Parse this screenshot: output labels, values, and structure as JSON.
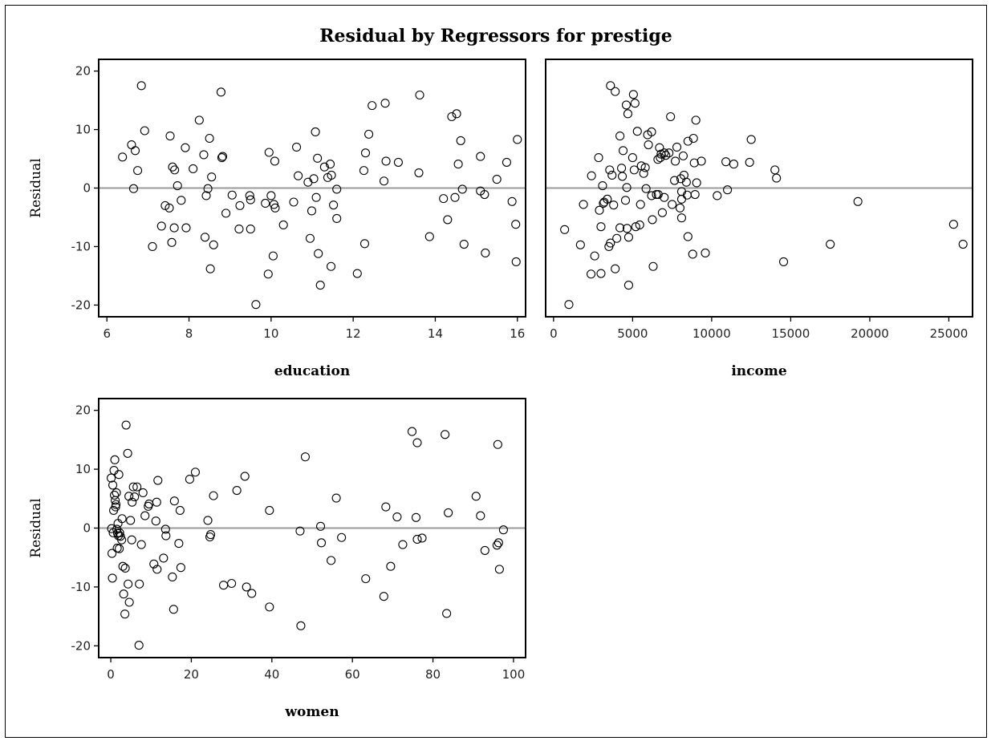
{
  "chart_data": {
    "type": "scatter",
    "title": "Residual by Regressors for prestige",
    "panels": [
      {
        "id": "education",
        "xlabel": "education",
        "ylabel": "Residual",
        "xlim": [
          5.8,
          16.2
        ],
        "ylim": [
          -22,
          22
        ],
        "xticks": [
          6,
          8,
          10,
          12,
          14,
          16
        ],
        "yticks": [
          20,
          10,
          0,
          -10,
          -20
        ],
        "reference_line": 0,
        "points": [
          [
            6.38,
            5.3
          ],
          [
            6.6,
            7.4
          ],
          [
            6.65,
            -0.1
          ],
          [
            6.69,
            6.4
          ],
          [
            6.75,
            3.0
          ],
          [
            6.84,
            17.5
          ],
          [
            6.92,
            9.8
          ],
          [
            7.11,
            -10.0
          ],
          [
            7.33,
            -6.5
          ],
          [
            7.42,
            -3.0
          ],
          [
            7.52,
            -3.4
          ],
          [
            7.54,
            8.9
          ],
          [
            7.58,
            -9.3
          ],
          [
            7.6,
            3.6
          ],
          [
            7.64,
            -6.8
          ],
          [
            7.65,
            3.1
          ],
          [
            7.72,
            0.4
          ],
          [
            7.81,
            -2.1
          ],
          [
            7.91,
            6.9
          ],
          [
            7.93,
            -6.8
          ],
          [
            8.1,
            3.3
          ],
          [
            8.25,
            11.6
          ],
          [
            8.36,
            5.7
          ],
          [
            8.39,
            -8.4
          ],
          [
            8.42,
            -1.3
          ],
          [
            8.46,
            -0.1
          ],
          [
            8.5,
            8.5
          ],
          [
            8.52,
            -13.8
          ],
          [
            8.55,
            1.9
          ],
          [
            8.6,
            -9.7
          ],
          [
            8.78,
            16.4
          ],
          [
            8.8,
            5.2
          ],
          [
            8.82,
            5.4
          ],
          [
            8.9,
            -4.3
          ],
          [
            9.05,
            -1.2
          ],
          [
            9.22,
            -7.0
          ],
          [
            9.24,
            -3.0
          ],
          [
            9.48,
            -1.3
          ],
          [
            9.5,
            -2.0
          ],
          [
            9.5,
            -7.0
          ],
          [
            9.63,
            -19.9
          ],
          [
            9.86,
            -2.6
          ],
          [
            9.93,
            -14.7
          ],
          [
            9.95,
            6.1
          ],
          [
            10.0,
            -1.3
          ],
          [
            10.05,
            -11.6
          ],
          [
            10.07,
            -2.8
          ],
          [
            10.09,
            4.6
          ],
          [
            10.1,
            -3.4
          ],
          [
            10.3,
            -6.3
          ],
          [
            10.55,
            -2.4
          ],
          [
            10.62,
            7.0
          ],
          [
            10.66,
            2.1
          ],
          [
            10.9,
            1.0
          ],
          [
            10.95,
            -8.6
          ],
          [
            10.99,
            -3.9
          ],
          [
            11.04,
            1.6
          ],
          [
            11.08,
            9.6
          ],
          [
            11.1,
            -1.6
          ],
          [
            11.13,
            5.1
          ],
          [
            11.15,
            -11.2
          ],
          [
            11.2,
            -16.6
          ],
          [
            11.3,
            3.6
          ],
          [
            11.38,
            1.8
          ],
          [
            11.44,
            4.1
          ],
          [
            11.46,
            -13.4
          ],
          [
            11.47,
            2.2
          ],
          [
            11.52,
            -2.9
          ],
          [
            11.6,
            -5.2
          ],
          [
            11.6,
            -0.2
          ],
          [
            12.1,
            -14.6
          ],
          [
            12.26,
            3.0
          ],
          [
            12.28,
            -9.5
          ],
          [
            12.3,
            6.0
          ],
          [
            12.38,
            9.2
          ],
          [
            12.46,
            14.1
          ],
          [
            12.75,
            1.2
          ],
          [
            12.78,
            14.5
          ],
          [
            12.8,
            4.6
          ],
          [
            13.1,
            4.4
          ],
          [
            13.6,
            2.6
          ],
          [
            13.62,
            15.9
          ],
          [
            13.86,
            -8.3
          ],
          [
            14.2,
            -1.8
          ],
          [
            14.3,
            -5.4
          ],
          [
            14.4,
            12.2
          ],
          [
            14.48,
            -1.6
          ],
          [
            14.52,
            12.7
          ],
          [
            14.56,
            4.1
          ],
          [
            14.62,
            8.1
          ],
          [
            14.66,
            -0.2
          ],
          [
            14.7,
            -9.6
          ],
          [
            15.1,
            5.4
          ],
          [
            15.1,
            -0.5
          ],
          [
            15.2,
            -1.1
          ],
          [
            15.22,
            -11.1
          ],
          [
            15.5,
            1.5
          ],
          [
            15.74,
            4.4
          ],
          [
            15.87,
            -2.3
          ],
          [
            15.96,
            -6.2
          ],
          [
            15.97,
            -12.6
          ],
          [
            16.0,
            8.3
          ]
        ]
      },
      {
        "id": "income",
        "xlabel": "income",
        "ylabel": "",
        "xlim": [
          -500,
          26500
        ],
        "ylim": [
          -22,
          22
        ],
        "xticks": [
          0,
          5000,
          10000,
          15000,
          20000,
          25000
        ],
        "yticks": [],
        "reference_line": 0,
        "points": [
          [
            700,
            -7.1
          ],
          [
            970,
            -19.9
          ],
          [
            1700,
            -9.7
          ],
          [
            1890,
            -2.8
          ],
          [
            2370,
            -14.7
          ],
          [
            2400,
            2.1
          ],
          [
            2600,
            -11.6
          ],
          [
            2850,
            5.2
          ],
          [
            2900,
            -3.8
          ],
          [
            3000,
            -14.6
          ],
          [
            3000,
            -6.6
          ],
          [
            3100,
            0.4
          ],
          [
            3150,
            -2.6
          ],
          [
            3200,
            -2.4
          ],
          [
            3400,
            -1.9
          ],
          [
            3500,
            -10.0
          ],
          [
            3550,
            3.1
          ],
          [
            3600,
            -9.4
          ],
          [
            3600,
            17.5
          ],
          [
            3700,
            2.2
          ],
          [
            3800,
            -2.9
          ],
          [
            3900,
            16.5
          ],
          [
            3900,
            -13.8
          ],
          [
            4000,
            -8.6
          ],
          [
            4200,
            -6.8
          ],
          [
            4200,
            8.9
          ],
          [
            4300,
            3.4
          ],
          [
            4350,
            2.0
          ],
          [
            4400,
            6.4
          ],
          [
            4550,
            -2.1
          ],
          [
            4600,
            14.2
          ],
          [
            4630,
            0.1
          ],
          [
            4650,
            -6.9
          ],
          [
            4700,
            12.7
          ],
          [
            4750,
            -16.6
          ],
          [
            4750,
            -8.4
          ],
          [
            5000,
            5.2
          ],
          [
            5050,
            16.0
          ],
          [
            5100,
            3.1
          ],
          [
            5150,
            14.5
          ],
          [
            5200,
            -6.6
          ],
          [
            5300,
            9.7
          ],
          [
            5450,
            -6.3
          ],
          [
            5500,
            -2.8
          ],
          [
            5550,
            3.8
          ],
          [
            5700,
            2.5
          ],
          [
            5800,
            3.5
          ],
          [
            5850,
            -0.1
          ],
          [
            5950,
            9.1
          ],
          [
            6000,
            7.4
          ],
          [
            6200,
            9.6
          ],
          [
            6200,
            -1.3
          ],
          [
            6250,
            -5.4
          ],
          [
            6300,
            -13.4
          ],
          [
            6500,
            -1.1
          ],
          [
            6600,
            4.9
          ],
          [
            6620,
            -1.1
          ],
          [
            6700,
            6.9
          ],
          [
            6750,
            5.2
          ],
          [
            6800,
            5.8
          ],
          [
            6880,
            -4.2
          ],
          [
            7000,
            6.0
          ],
          [
            7000,
            -1.6
          ],
          [
            7100,
            5.6
          ],
          [
            7300,
            6.0
          ],
          [
            7400,
            12.2
          ],
          [
            7500,
            -2.8
          ],
          [
            7650,
            1.3
          ],
          [
            7700,
            4.6
          ],
          [
            7800,
            7.0
          ],
          [
            8000,
            -3.4
          ],
          [
            8050,
            1.6
          ],
          [
            8100,
            -0.6
          ],
          [
            8100,
            -5.1
          ],
          [
            8100,
            -1.9
          ],
          [
            8200,
            5.5
          ],
          [
            8250,
            2.2
          ],
          [
            8400,
            1.0
          ],
          [
            8450,
            -1.2
          ],
          [
            8500,
            -8.3
          ],
          [
            8500,
            8.0
          ],
          [
            8800,
            -11.3
          ],
          [
            8850,
            8.5
          ],
          [
            8900,
            4.3
          ],
          [
            8950,
            -1.1
          ],
          [
            9000,
            11.6
          ],
          [
            9050,
            0.9
          ],
          [
            9350,
            4.6
          ],
          [
            9600,
            -11.1
          ],
          [
            10350,
            -1.3
          ],
          [
            10900,
            4.5
          ],
          [
            11000,
            -0.3
          ],
          [
            11400,
            4.1
          ],
          [
            12400,
            4.4
          ],
          [
            12500,
            8.3
          ],
          [
            14000,
            3.1
          ],
          [
            14100,
            1.7
          ],
          [
            14550,
            -12.6
          ],
          [
            17500,
            -9.6
          ],
          [
            19250,
            -2.3
          ],
          [
            25300,
            -6.2
          ],
          [
            25900,
            -9.6
          ]
        ]
      },
      {
        "id": "women",
        "xlabel": "women",
        "ylabel": "Residual",
        "xlim": [
          -3,
          103
        ],
        "ylim": [
          -22,
          22
        ],
        "xticks": [
          0,
          20,
          40,
          60,
          80,
          100
        ],
        "yticks": [
          20,
          10,
          0,
          -10,
          -20
        ],
        "reference_line": 0,
        "points": [
          [
            0.1,
            8.5
          ],
          [
            0.2,
            -0.1
          ],
          [
            0.3,
            -4.3
          ],
          [
            0.4,
            -8.5
          ],
          [
            0.5,
            7.3
          ],
          [
            0.6,
            -0.8
          ],
          [
            0.7,
            3.0
          ],
          [
            0.8,
            9.8
          ],
          [
            0.9,
            5.6
          ],
          [
            1.0,
            11.6
          ],
          [
            1.1,
            4.7
          ],
          [
            1.2,
            3.6
          ],
          [
            1.3,
            4.0
          ],
          [
            1.4,
            6.0
          ],
          [
            1.5,
            -0.2
          ],
          [
            1.6,
            -3.4
          ],
          [
            1.7,
            -0.9
          ],
          [
            1.8,
            0.8
          ],
          [
            1.9,
            -1.3
          ],
          [
            2.0,
            9.1
          ],
          [
            2.1,
            -3.5
          ],
          [
            2.2,
            -0.8
          ],
          [
            2.4,
            -1.4
          ],
          [
            2.7,
            -2.0
          ],
          [
            2.8,
            1.6
          ],
          [
            3.0,
            -6.5
          ],
          [
            3.2,
            -11.2
          ],
          [
            3.5,
            -14.6
          ],
          [
            3.6,
            -6.8
          ],
          [
            3.8,
            17.5
          ],
          [
            4.2,
            12.7
          ],
          [
            4.3,
            -9.5
          ],
          [
            4.5,
            5.4
          ],
          [
            4.6,
            -12.6
          ],
          [
            4.9,
            1.3
          ],
          [
            5.2,
            -2.0
          ],
          [
            5.3,
            4.4
          ],
          [
            5.6,
            7.0
          ],
          [
            5.9,
            5.3
          ],
          [
            6.5,
            7.0
          ],
          [
            7.0,
            -19.9
          ],
          [
            7.1,
            -9.5
          ],
          [
            7.6,
            -2.8
          ],
          [
            8.0,
            6.0
          ],
          [
            8.5,
            2.1
          ],
          [
            9.3,
            3.7
          ],
          [
            9.5,
            4.1
          ],
          [
            10.7,
            -6.1
          ],
          [
            11.2,
            1.2
          ],
          [
            11.4,
            4.4
          ],
          [
            11.5,
            -7.0
          ],
          [
            11.7,
            8.1
          ],
          [
            13.1,
            -5.1
          ],
          [
            13.6,
            -0.2
          ],
          [
            13.7,
            -1.3
          ],
          [
            15.3,
            -8.3
          ],
          [
            15.6,
            -13.8
          ],
          [
            15.8,
            4.6
          ],
          [
            16.9,
            -2.6
          ],
          [
            17.2,
            3.0
          ],
          [
            17.4,
            -6.7
          ],
          [
            19.6,
            8.3
          ],
          [
            21.0,
            9.5
          ],
          [
            24.1,
            1.3
          ],
          [
            24.6,
            -1.5
          ],
          [
            24.8,
            -1.1
          ],
          [
            25.5,
            5.5
          ],
          [
            28.0,
            -9.7
          ],
          [
            30.0,
            -9.4
          ],
          [
            31.3,
            6.4
          ],
          [
            33.3,
            8.8
          ],
          [
            33.7,
            -10.0
          ],
          [
            35.0,
            -11.1
          ],
          [
            39.4,
            3.0
          ],
          [
            39.4,
            -13.4
          ],
          [
            47.0,
            -0.5
          ],
          [
            47.2,
            -16.6
          ],
          [
            48.3,
            12.1
          ],
          [
            52.1,
            0.3
          ],
          [
            52.3,
            -2.5
          ],
          [
            54.7,
            -5.5
          ],
          [
            56.0,
            5.1
          ],
          [
            57.3,
            -1.6
          ],
          [
            63.3,
            -8.6
          ],
          [
            67.8,
            -11.6
          ],
          [
            68.3,
            3.6
          ],
          [
            69.5,
            -6.5
          ],
          [
            71.1,
            1.9
          ],
          [
            72.5,
            -2.8
          ],
          [
            74.8,
            16.4
          ],
          [
            75.8,
            1.8
          ],
          [
            76.1,
            14.5
          ],
          [
            76.1,
            -1.9
          ],
          [
            77.3,
            -1.7
          ],
          [
            83.0,
            15.9
          ],
          [
            83.4,
            -14.5
          ],
          [
            83.8,
            2.6
          ],
          [
            90.7,
            5.4
          ],
          [
            91.8,
            2.1
          ],
          [
            92.9,
            -3.8
          ],
          [
            95.9,
            -2.9
          ],
          [
            96.1,
            14.2
          ],
          [
            96.3,
            -2.5
          ],
          [
            96.5,
            -7.0
          ],
          [
            97.5,
            -0.3
          ]
        ]
      }
    ]
  }
}
